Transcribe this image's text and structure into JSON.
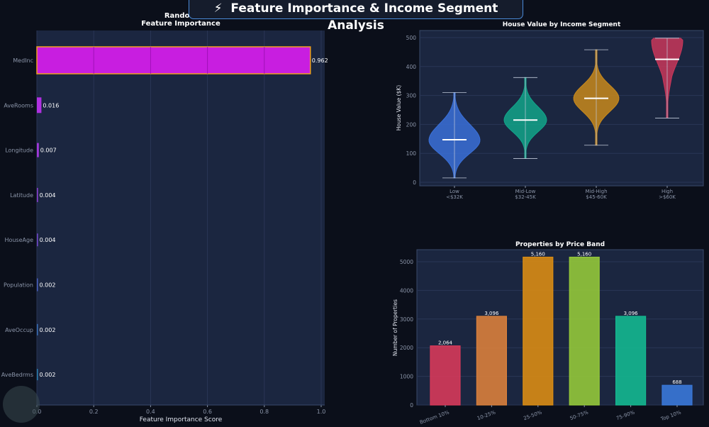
{
  "banner": {
    "icon": "lightning-icon",
    "title": "Feature Importance & Income Segment Analysis"
  },
  "chart_data": [
    {
      "type": "bar",
      "orientation": "horizontal",
      "title": "Random Forest\nFeature Importance",
      "title_line1": "Random F",
      "title_line2": "Feature Importance",
      "xlabel": "Feature Importance Score",
      "xlim": [
        0,
        1.0
      ],
      "xticks": [
        "0.0",
        "0.2",
        "0.4",
        "0.6",
        "0.8",
        "1.0"
      ],
      "categories": [
        "MedInc",
        "AveRooms",
        "Longitude",
        "Latitude",
        "HouseAge",
        "Population",
        "AveOccup",
        "AveBedrms"
      ],
      "values": [
        0.962,
        0.016,
        0.007,
        0.004,
        0.004,
        0.002,
        0.002,
        0.002
      ],
      "labels": [
        "0.962",
        "0.016",
        "0.007",
        "0.004",
        "0.004",
        "0.002",
        "0.002",
        "0.002"
      ],
      "highlight_color": "#c81ee0",
      "highlight_edge": "#f0a020",
      "grid": true
    },
    {
      "type": "violin",
      "title": "House Value by Income Segment",
      "ylabel": "House Value ($K)",
      "ylim": [
        0,
        520
      ],
      "yticks": [
        "0",
        "100",
        "200",
        "300",
        "400",
        "500"
      ],
      "categories": [
        "Low\n<$32K",
        "Mid-Low\n$32-45K",
        "Mid-High\n$45-60K",
        "High\n>$60K"
      ],
      "cat_line1": [
        "Low",
        "Mid-Low",
        "Mid-High",
        "High"
      ],
      "cat_line2": [
        "<$32K",
        "$32-45K",
        "$45-60K",
        ">$60K"
      ],
      "series": [
        {
          "min": 15,
          "max": 310,
          "median": 147,
          "color": "#3a70d8"
        },
        {
          "min": 82,
          "max": 362,
          "median": 215,
          "color": "#12a58a"
        },
        {
          "min": 128,
          "max": 458,
          "median": 290,
          "color": "#c8891c"
        },
        {
          "min": 222,
          "max": 498,
          "median": 425,
          "color": "#c8375a"
        }
      ],
      "grid": true
    },
    {
      "type": "bar",
      "title": "Properties by Price Band",
      "ylabel": "Number of Properties",
      "ylim": [
        0,
        5400
      ],
      "yticks": [
        "0",
        "1000",
        "2000",
        "3000",
        "4000",
        "5000"
      ],
      "categories": [
        "Bottom 10%",
        "10-25%",
        "25-50%",
        "50-75%",
        "75-90%",
        "Top 10%"
      ],
      "values": [
        2064,
        3096,
        5160,
        5160,
        3096,
        688
      ],
      "labels": [
        "2,064",
        "3,096",
        "5,160",
        "5,160",
        "3,096",
        "688"
      ],
      "colors": [
        "#d63a5a",
        "#d9803c",
        "#d98c14",
        "#94c83a",
        "#14b890",
        "#3a78d8"
      ],
      "grid": true
    }
  ]
}
